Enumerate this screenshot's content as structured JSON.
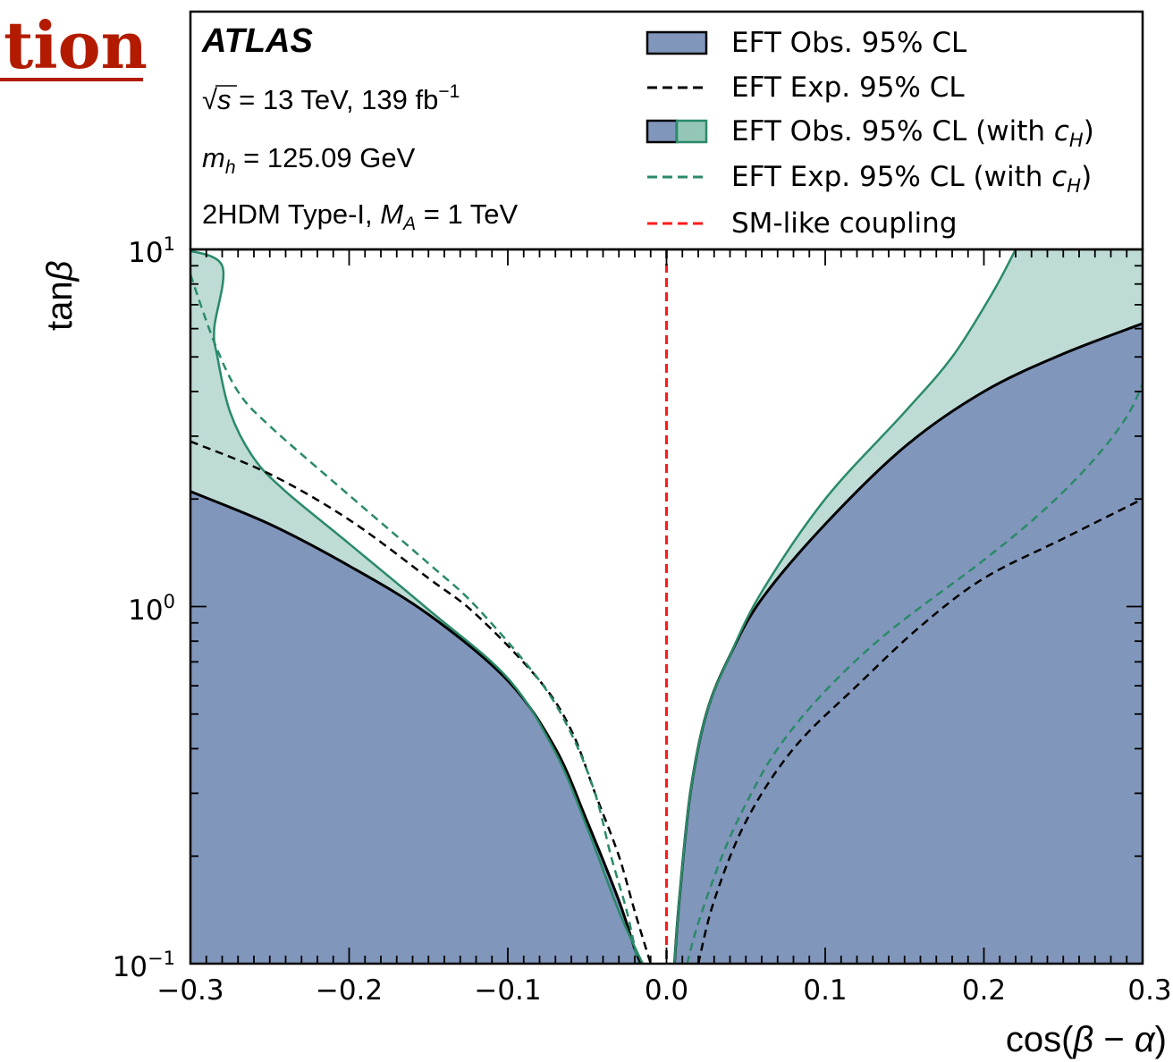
{
  "page": {
    "cropped_heading": "tion"
  },
  "chart_data": {
    "type": "area",
    "experiment": "ATLAS",
    "energy_lumi": {
      "sqrt": "√",
      "s": "s",
      "eq": " = 13 TeV, 139 fb",
      "exp": "−1"
    },
    "mass_label": {
      "m": "m",
      "sub": "h",
      "rest": " = 125.09 GeV"
    },
    "model_label": {
      "prefix": "2HDM Type-I, ",
      "M": "M",
      "sub": "A",
      "rest": " = 1 TeV"
    },
    "xlabel": {
      "pre": "cos(",
      "beta": "β",
      "op": " − ",
      "alpha": "α",
      "post": ")"
    },
    "ylabel": {
      "pre": "tan",
      "beta": "β"
    },
    "xlim": [
      -0.3,
      0.3
    ],
    "ylim": [
      0.1,
      10
    ],
    "yscale": "log",
    "x_tick_labels": [
      "−0.3",
      "−0.2",
      "−0.1",
      "0.0",
      "0.1",
      "0.2",
      "0.3"
    ],
    "y_tick_labels": [
      {
        "base": "10",
        "exp": "−1"
      },
      {
        "base": "10",
        "exp": "0"
      },
      {
        "base": "10",
        "exp": "1"
      }
    ],
    "legend": {
      "placement": "top-right",
      "entries": [
        {
          "key": "obs",
          "text": "EFT Obs. 95% CL"
        },
        {
          "key": "exp",
          "text": "EFT Exp. 95% CL"
        },
        {
          "key": "obs_ch",
          "text": "EFT Obs. 95% CL (with ",
          "c": "c",
          "sub": "H",
          "close": ")"
        },
        {
          "key": "exp_ch",
          "text": "EFT Exp. 95% CL (with ",
          "c": "c",
          "sub": "H",
          "close": ")"
        },
        {
          "key": "sm",
          "text": "SM-like coupling"
        }
      ]
    },
    "colors": {
      "obs_fill": "#8196bb",
      "ch_fill": "#bedcd5",
      "ch_line": "#2a8a6a",
      "exp_line": "#000000",
      "sm_line": "#ff1a1a",
      "heading": "#b31b00"
    },
    "series": [
      {
        "name": "EFT Obs. 95% CL",
        "style": "filled-solid-black",
        "left": [
          [
            -0.3,
            2.1
          ],
          [
            -0.25,
            1.7
          ],
          [
            -0.2,
            1.3
          ],
          [
            -0.15,
            0.95
          ],
          [
            -0.1,
            0.62
          ],
          [
            -0.07,
            0.4
          ],
          [
            -0.05,
            0.25
          ],
          [
            -0.03,
            0.15
          ],
          [
            -0.02,
            0.11
          ],
          [
            -0.016,
            0.1
          ]
        ],
        "right": [
          [
            0.005,
            0.1
          ],
          [
            0.008,
            0.15
          ],
          [
            0.015,
            0.3
          ],
          [
            0.025,
            0.5
          ],
          [
            0.04,
            0.73
          ],
          [
            0.06,
            1.05
          ],
          [
            0.1,
            1.7
          ],
          [
            0.15,
            2.8
          ],
          [
            0.2,
            4.0
          ],
          [
            0.25,
            5.1
          ],
          [
            0.3,
            6.2
          ]
        ]
      },
      {
        "name": "EFT Obs. 95% CL (with cH)",
        "style": "filled-solid-green",
        "left": [
          [
            -0.305,
            10
          ],
          [
            -0.28,
            9
          ],
          [
            -0.285,
            6
          ],
          [
            -0.283,
            5
          ],
          [
            -0.275,
            3.5
          ],
          [
            -0.26,
            2.6
          ],
          [
            -0.24,
            2.1
          ],
          [
            -0.2,
            1.5
          ],
          [
            -0.15,
            0.98
          ],
          [
            -0.1,
            0.63
          ],
          [
            -0.07,
            0.39
          ],
          [
            -0.05,
            0.24
          ],
          [
            -0.03,
            0.14
          ],
          [
            -0.015,
            0.1
          ]
        ],
        "right": [
          [
            0.005,
            0.1
          ],
          [
            0.008,
            0.15
          ],
          [
            0.015,
            0.3
          ],
          [
            0.025,
            0.5
          ],
          [
            0.04,
            0.73
          ],
          [
            0.06,
            1.1
          ],
          [
            0.1,
            2.0
          ],
          [
            0.15,
            3.5
          ],
          [
            0.18,
            5.0
          ],
          [
            0.205,
            7.5
          ],
          [
            0.22,
            10
          ]
        ]
      },
      {
        "name": "EFT Exp. 95% CL",
        "style": "dashed-black",
        "left": [
          [
            -0.3,
            2.9
          ],
          [
            -0.25,
            2.35
          ],
          [
            -0.2,
            1.75
          ],
          [
            -0.15,
            1.2
          ],
          [
            -0.12,
            0.95
          ],
          [
            -0.08,
            0.62
          ],
          [
            -0.06,
            0.45
          ],
          [
            -0.045,
            0.3
          ],
          [
            -0.03,
            0.2
          ],
          [
            -0.02,
            0.14
          ],
          [
            -0.01,
            0.1
          ]
        ],
        "right": [
          [
            0.02,
            0.1
          ],
          [
            0.03,
            0.15
          ],
          [
            0.05,
            0.25
          ],
          [
            0.08,
            0.4
          ],
          [
            0.12,
            0.6
          ],
          [
            0.16,
            0.88
          ],
          [
            0.2,
            1.2
          ],
          [
            0.25,
            1.55
          ],
          [
            0.3,
            2.0
          ]
        ]
      },
      {
        "name": "EFT Exp. 95% CL (with cH)",
        "style": "dashed-green",
        "left": [
          [
            -0.3,
            8.5
          ],
          [
            -0.285,
            5.5
          ],
          [
            -0.27,
            4.0
          ],
          [
            -0.25,
            3.2
          ],
          [
            -0.2,
            2.05
          ],
          [
            -0.15,
            1.32
          ],
          [
            -0.12,
            1.0
          ],
          [
            -0.08,
            0.62
          ],
          [
            -0.06,
            0.44
          ],
          [
            -0.045,
            0.3
          ],
          [
            -0.035,
            0.2
          ],
          [
            -0.025,
            0.14
          ],
          [
            -0.018,
            0.1
          ]
        ],
        "right": [
          [
            0.013,
            0.1
          ],
          [
            0.02,
            0.13
          ],
          [
            0.035,
            0.2
          ],
          [
            0.05,
            0.28
          ],
          [
            0.07,
            0.4
          ],
          [
            0.1,
            0.58
          ],
          [
            0.14,
            0.85
          ],
          [
            0.2,
            1.35
          ],
          [
            0.24,
            1.9
          ],
          [
            0.27,
            2.6
          ],
          [
            0.29,
            3.4
          ],
          [
            0.3,
            4.2
          ]
        ]
      },
      {
        "name": "SM-like coupling",
        "style": "dashed-red",
        "x": 0.0
      }
    ]
  }
}
